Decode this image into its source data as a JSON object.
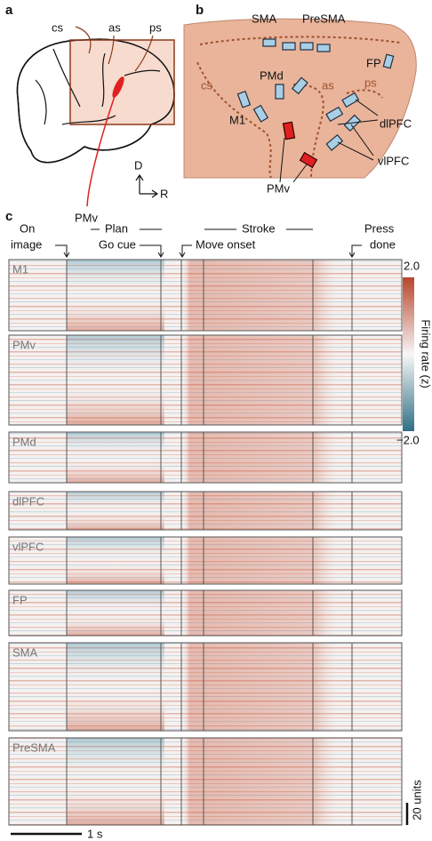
{
  "panel_a": {
    "letter": "a",
    "sulci": [
      "cs",
      "as",
      "ps"
    ],
    "area": "PMv",
    "axis_d": "D",
    "axis_r": "R"
  },
  "panel_b": {
    "letter": "b",
    "areas": [
      "SMA",
      "PreSMA",
      "FP",
      "PMd",
      "M1",
      "dlPFC",
      "vlPFC",
      "PMv"
    ],
    "sulci": [
      "cs",
      "as",
      "ps"
    ]
  },
  "panel_c": {
    "letter": "c",
    "events": [
      "On",
      "image",
      "Plan",
      "Go cue",
      "Move onset",
      "Stroke",
      "Press",
      "done"
    ],
    "regions": [
      "M1",
      "PMv",
      "PMd",
      "dlPFC",
      "vlPFC",
      "FP",
      "SMA",
      "PreSMA"
    ],
    "colorbar": {
      "max": "2.0",
      "min": "−2.0",
      "label": "Firing rate (z)"
    },
    "scale": {
      "time": "1 s",
      "units": "20 units"
    }
  }
}
